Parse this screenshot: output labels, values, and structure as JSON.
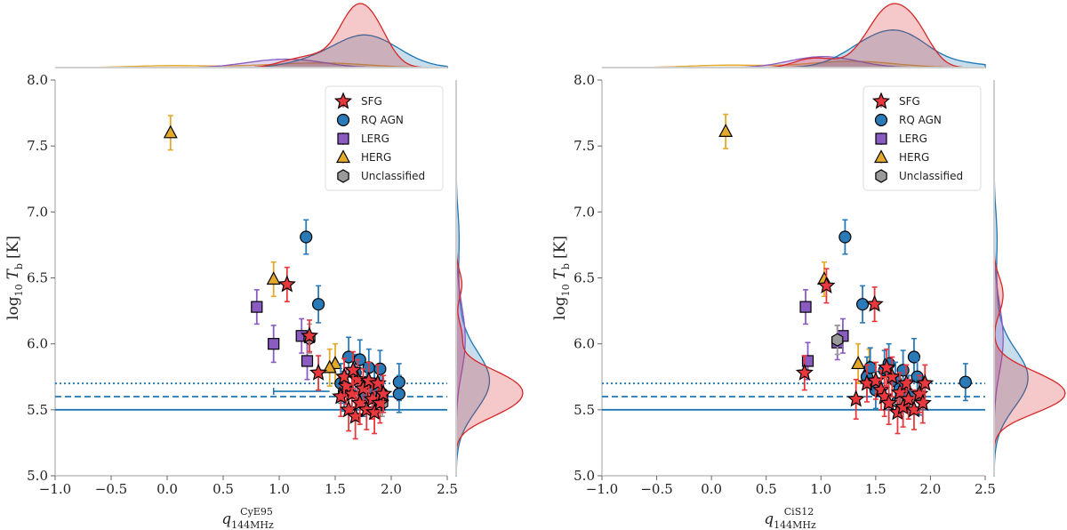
{
  "colors": {
    "SFG": "#e8383d",
    "RQ AGN": "#2a7ab8",
    "LERG": "#8a5cc2",
    "HERG": "#e3a92a",
    "Unclassified": "#9a9a9a",
    "line": "#1f77b4",
    "kde_red": "#d62728",
    "kde_blue": "#1f77b4",
    "kde_purple": "#8a5cc2",
    "kde_orange": "#e3a92a"
  },
  "chart_data": [
    {
      "type": "scatter",
      "xlabel_main": "q",
      "xlabel_sub": "144MHz",
      "xlabel_sup": "CyE95",
      "ylabel_main": "log",
      "ylabel_sub": "10",
      "ylabel_var": "T",
      "ylabel_var_sub": "b",
      "ylabel_unit": "[K]",
      "xlim": [
        -1.0,
        2.5
      ],
      "ylim": [
        5.0,
        8.0
      ],
      "xticks": [
        "−1.0",
        "−0.5",
        "0.0",
        "0.5",
        "1.0",
        "1.5",
        "2.0",
        "2.5"
      ],
      "xtick_values": [
        -1.0,
        -0.5,
        0.0,
        0.5,
        1.0,
        1.5,
        2.0,
        2.5
      ],
      "yticks": [
        "5.0",
        "5.5",
        "6.0",
        "6.5",
        "7.0",
        "7.5",
        "8.0"
      ],
      "ytick_values": [
        5.0,
        5.5,
        6.0,
        6.5,
        7.0,
        7.5,
        8.0
      ],
      "legend": [
        "SFG",
        "RQ AGN",
        "LERG",
        "HERG",
        "Unclassified"
      ],
      "legend_position": "top-right",
      "hlines": [
        {
          "y": 5.5,
          "style": "solid"
        },
        {
          "y": 5.6,
          "style": "dashed"
        },
        {
          "y": 5.7,
          "style": "dotted"
        }
      ],
      "upper_limit": {
        "x": [
          0.95,
          1.45
        ],
        "y": 5.64
      },
      "series": [
        {
          "name": "SFG",
          "marker": "star",
          "points": [
            [
              1.07,
              6.45,
              0.13
            ],
            [
              1.27,
              6.06,
              0.12
            ],
            [
              1.35,
              5.78,
              0.13
            ],
            [
              1.55,
              5.6,
              0.15
            ],
            [
              1.6,
              5.68,
              0.14
            ],
            [
              1.62,
              5.5,
              0.16
            ],
            [
              1.65,
              5.62,
              0.15
            ],
            [
              1.68,
              5.45,
              0.17
            ],
            [
              1.7,
              5.73,
              0.15
            ],
            [
              1.72,
              5.55,
              0.16
            ],
            [
              1.75,
              5.66,
              0.15
            ],
            [
              1.78,
              5.5,
              0.15
            ],
            [
              1.8,
              5.72,
              0.14
            ],
            [
              1.83,
              5.58,
              0.15
            ],
            [
              1.85,
              5.48,
              0.16
            ],
            [
              1.88,
              5.7,
              0.14
            ],
            [
              1.9,
              5.55,
              0.15
            ],
            [
              1.93,
              5.62,
              0.14
            ],
            [
              1.58,
              5.75,
              0.14
            ],
            [
              1.66,
              5.8,
              0.14
            ]
          ]
        },
        {
          "name": "RQ AGN",
          "marker": "circle",
          "points": [
            [
              1.24,
              6.81,
              0.13
            ],
            [
              1.35,
              6.3,
              0.14
            ],
            [
              1.55,
              5.7,
              0.15
            ],
            [
              1.58,
              5.64,
              0.15
            ],
            [
              1.62,
              5.9,
              0.15
            ],
            [
              1.68,
              5.78,
              0.14
            ],
            [
              1.72,
              5.88,
              0.15
            ],
            [
              1.75,
              5.6,
              0.15
            ],
            [
              1.8,
              5.82,
              0.14
            ],
            [
              1.85,
              5.65,
              0.15
            ],
            [
              1.9,
              5.81,
              0.14
            ],
            [
              1.92,
              5.62,
              0.14
            ],
            [
              2.07,
              5.71,
              0.14
            ],
            [
              2.07,
              5.62,
              0.14
            ],
            [
              1.78,
              5.7,
              0.15
            ]
          ]
        },
        {
          "name": "LERG",
          "marker": "square",
          "points": [
            [
              0.8,
              6.28,
              0.13
            ],
            [
              0.95,
              6.0,
              0.14
            ],
            [
              1.2,
              6.06,
              0.13
            ],
            [
              1.25,
              5.87,
              0.14
            ]
          ]
        },
        {
          "name": "HERG",
          "marker": "triangle",
          "points": [
            [
              0.03,
              7.6,
              0.13
            ],
            [
              0.95,
              6.49,
              0.13
            ],
            [
              1.5,
              5.85,
              0.15
            ],
            [
              1.45,
              5.82,
              0.14
            ]
          ]
        },
        {
          "name": "Unclassified",
          "marker": "hexagon",
          "points": [
            [
              1.27,
              6.04,
              0.11
            ],
            [
              1.92,
              5.55,
              0.1
            ]
          ]
        }
      ]
    },
    {
      "type": "scatter",
      "xlabel_main": "q",
      "xlabel_sub": "144MHz",
      "xlabel_sup": "CiS12",
      "ylabel_main": "log",
      "ylabel_sub": "10",
      "ylabel_var": "T",
      "ylabel_var_sub": "b",
      "ylabel_unit": "[K]",
      "xlim": [
        -1.0,
        2.5
      ],
      "ylim": [
        5.0,
        8.0
      ],
      "xticks": [
        "−1.0",
        "−0.5",
        "0.0",
        "0.5",
        "1.0",
        "1.5",
        "2.0",
        "2.5"
      ],
      "xtick_values": [
        -1.0,
        -0.5,
        0.0,
        0.5,
        1.0,
        1.5,
        2.0,
        2.5
      ],
      "yticks": [
        "5.0",
        "5.5",
        "6.0",
        "6.5",
        "7.0",
        "7.5",
        "8.0"
      ],
      "ytick_values": [
        5.0,
        5.5,
        6.0,
        6.5,
        7.0,
        7.5,
        8.0
      ],
      "legend": [
        "SFG",
        "RQ AGN",
        "LERG",
        "HERG",
        "Unclassified"
      ],
      "legend_position": "top-right",
      "hlines": [
        {
          "y": 5.5,
          "style": "solid"
        },
        {
          "y": 5.6,
          "style": "dashed"
        },
        {
          "y": 5.7,
          "style": "dotted"
        }
      ],
      "series": [
        {
          "name": "SFG",
          "marker": "star",
          "points": [
            [
              0.85,
              5.78,
              0.13
            ],
            [
              1.05,
              6.44,
              0.13
            ],
            [
              1.32,
              5.58,
              0.15
            ],
            [
              1.42,
              5.7,
              0.14
            ],
            [
              1.49,
              6.3,
              0.13
            ],
            [
              1.5,
              5.72,
              0.14
            ],
            [
              1.55,
              5.65,
              0.15
            ],
            [
              1.58,
              5.6,
              0.15
            ],
            [
              1.62,
              5.55,
              0.16
            ],
            [
              1.65,
              5.75,
              0.15
            ],
            [
              1.7,
              5.48,
              0.16
            ],
            [
              1.72,
              5.63,
              0.15
            ],
            [
              1.75,
              5.52,
              0.15
            ],
            [
              1.78,
              5.7,
              0.14
            ],
            [
              1.8,
              5.58,
              0.15
            ],
            [
              1.85,
              5.5,
              0.15
            ],
            [
              1.9,
              5.62,
              0.14
            ],
            [
              1.93,
              5.55,
              0.15
            ],
            [
              1.95,
              5.7,
              0.14
            ],
            [
              1.6,
              5.82,
              0.14
            ]
          ]
        },
        {
          "name": "RQ AGN",
          "marker": "circle",
          "points": [
            [
              1.22,
              6.81,
              0.13
            ],
            [
              1.38,
              6.3,
              0.14
            ],
            [
              1.42,
              5.75,
              0.15
            ],
            [
              1.45,
              5.82,
              0.15
            ],
            [
              1.5,
              5.65,
              0.14
            ],
            [
              1.58,
              5.8,
              0.15
            ],
            [
              1.62,
              5.85,
              0.15
            ],
            [
              1.68,
              5.72,
              0.14
            ],
            [
              1.72,
              5.66,
              0.15
            ],
            [
              1.75,
              5.8,
              0.15
            ],
            [
              1.8,
              5.62,
              0.14
            ],
            [
              1.85,
              5.9,
              0.14
            ],
            [
              1.88,
              5.75,
              0.14
            ],
            [
              1.9,
              5.6,
              0.14
            ],
            [
              2.32,
              5.71,
              0.14
            ]
          ]
        },
        {
          "name": "LERG",
          "marker": "square",
          "points": [
            [
              0.86,
              6.28,
              0.13
            ],
            [
              0.88,
              5.87,
              0.14
            ],
            [
              1.15,
              6.01,
              0.13
            ],
            [
              1.2,
              6.06,
              0.13
            ]
          ]
        },
        {
          "name": "HERG",
          "marker": "triangle",
          "points": [
            [
              0.13,
              7.61,
              0.13
            ],
            [
              1.03,
              6.49,
              0.13
            ],
            [
              1.34,
              5.85,
              0.15
            ],
            [
              1.44,
              5.82,
              0.14
            ]
          ]
        },
        {
          "name": "Unclassified",
          "marker": "hexagon",
          "points": [
            [
              1.15,
              6.03,
              0.11
            ],
            [
              1.7,
              5.56,
              0.1
            ]
          ]
        }
      ]
    }
  ]
}
